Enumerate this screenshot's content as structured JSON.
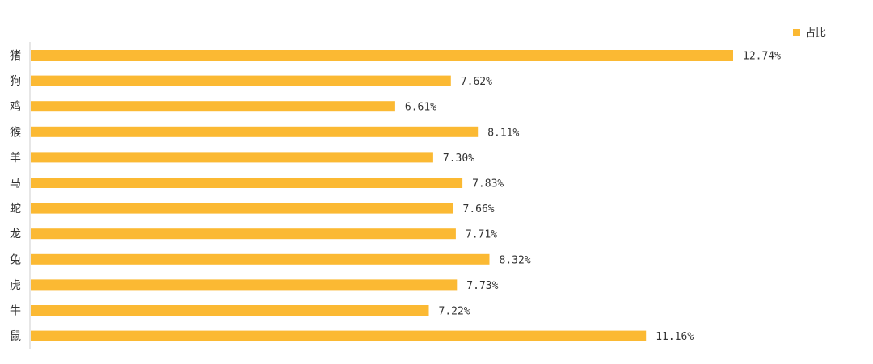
{
  "chart_data": {
    "type": "bar",
    "orientation": "horizontal",
    "categories": [
      "猪",
      "狗",
      "鸡",
      "猴",
      "羊",
      "马",
      "蛇",
      "龙",
      "兔",
      "虎",
      "牛",
      "鼠"
    ],
    "series": [
      {
        "name": "占比",
        "values": [
          12.74,
          7.62,
          6.61,
          8.11,
          7.3,
          7.83,
          7.66,
          7.71,
          8.32,
          7.73,
          7.22,
          11.16
        ],
        "labels": [
          "12.74%",
          "7.62%",
          "6.61%",
          "8.11%",
          "7.30%",
          "7.83%",
          "7.66%",
          "7.71%",
          "8.32%",
          "7.73%",
          "7.22%",
          "11.16%"
        ],
        "color": "#FBB933"
      }
    ],
    "xlim": [
      0,
      14
    ],
    "grid": false,
    "legend": "top-right"
  }
}
